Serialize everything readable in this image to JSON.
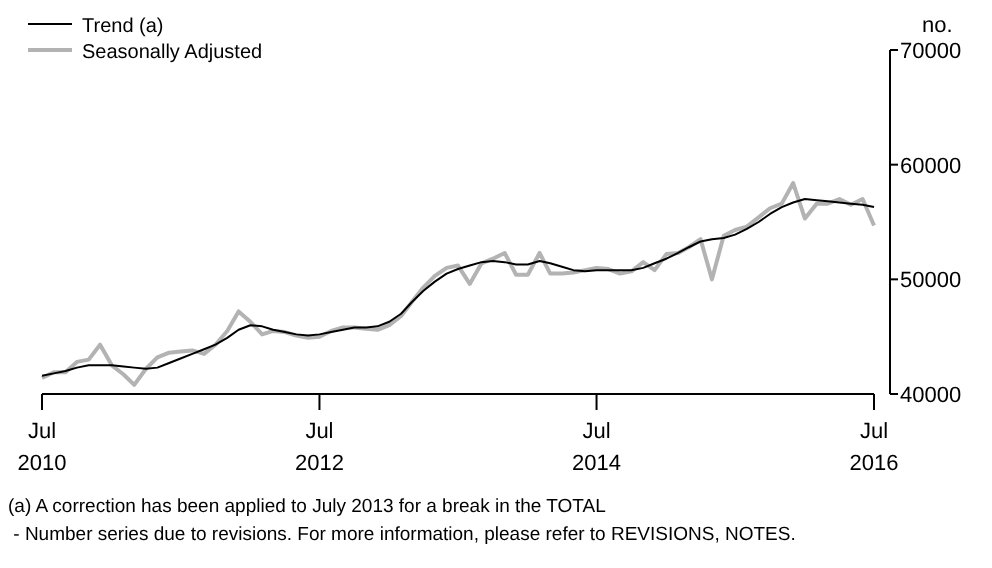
{
  "chart_data": {
    "type": "line",
    "ylabel": "no.",
    "legend": "top left",
    "grid": false,
    "line_style": "solid",
    "x": [
      "2010-07",
      "2010-08",
      "2010-09",
      "2010-10",
      "2010-11",
      "2010-12",
      "2011-01",
      "2011-02",
      "2011-03",
      "2011-04",
      "2011-05",
      "2011-06",
      "2011-07",
      "2011-08",
      "2011-09",
      "2011-10",
      "2011-11",
      "2011-12",
      "2012-01",
      "2012-02",
      "2012-03",
      "2012-04",
      "2012-05",
      "2012-06",
      "2012-07",
      "2012-08",
      "2012-09",
      "2012-10",
      "2012-11",
      "2012-12",
      "2013-01",
      "2013-02",
      "2013-03",
      "2013-04",
      "2013-05",
      "2013-06",
      "2013-07",
      "2013-08",
      "2013-09",
      "2013-10",
      "2013-11",
      "2013-12",
      "2014-01",
      "2014-02",
      "2014-03",
      "2014-04",
      "2014-05",
      "2014-06",
      "2014-07",
      "2014-08",
      "2014-09",
      "2014-10",
      "2014-11",
      "2014-12",
      "2015-01",
      "2015-02",
      "2015-03",
      "2015-04",
      "2015-05",
      "2015-06",
      "2015-07",
      "2015-08",
      "2015-09",
      "2015-10",
      "2015-11",
      "2015-12",
      "2016-01",
      "2016-02",
      "2016-03",
      "2016-04",
      "2016-05",
      "2016-06",
      "2016-07"
    ],
    "series": [
      {
        "name": "Trend (a)",
        "color": "#000000",
        "values": [
          41600,
          41800,
          42000,
          42300,
          42500,
          42500,
          42500,
          42400,
          42300,
          42200,
          42300,
          42700,
          43100,
          43500,
          43900,
          44300,
          44900,
          45600,
          46000,
          45900,
          45600,
          45400,
          45200,
          45100,
          45200,
          45400,
          45600,
          45800,
          45800,
          45900,
          46300,
          47000,
          48000,
          49000,
          49800,
          50500,
          50900,
          51200,
          51500,
          51600,
          51500,
          51300,
          51300,
          51600,
          51400,
          51100,
          50800,
          50700,
          50800,
          50800,
          50800,
          50800,
          51000,
          51400,
          51800,
          52300,
          52800,
          53300,
          53500,
          53600,
          53900,
          54400,
          55000,
          55700,
          56300,
          56700,
          57000,
          56900,
          56800,
          56700,
          56600,
          56500,
          56300
        ]
      },
      {
        "name": "Seasonally Adjusted",
        "color": "#b3b3b3",
        "values": [
          41400,
          41900,
          41900,
          42800,
          43000,
          44300,
          42500,
          41700,
          40800,
          42200,
          43200,
          43600,
          43700,
          43800,
          43500,
          44300,
          45500,
          47200,
          46300,
          45200,
          45500,
          45400,
          45100,
          44900,
          45000,
          45500,
          45800,
          45800,
          45700,
          45600,
          46000,
          46800,
          48000,
          49300,
          50300,
          51000,
          51200,
          49600,
          51400,
          51800,
          52300,
          50400,
          50400,
          52300,
          50500,
          50500,
          50600,
          50800,
          51000,
          50900,
          50500,
          50700,
          51500,
          50800,
          52200,
          52300,
          52800,
          53500,
          50000,
          53800,
          54300,
          54600,
          55400,
          56200,
          56600,
          58400,
          55300,
          56600,
          56600,
          57000,
          56500,
          57000,
          54700
        ]
      }
    ],
    "xlim": [
      "2010-07",
      "2016-07"
    ],
    "xticks": [
      {
        "value": "2010-07",
        "label": "Jul\n2010"
      },
      {
        "value": "2012-07",
        "label": "Jul\n2012"
      },
      {
        "value": "2014-07",
        "label": "Jul\n2014"
      },
      {
        "value": "2016-07",
        "label": "Jul\n2016"
      }
    ],
    "ylim": [
      40000,
      70000
    ],
    "yticks": [
      40000,
      50000,
      60000,
      70000
    ],
    "annotations": [
      "(a) A correction has been applied to July 2013 for a break in the TOTAL",
      " - Number series due to revisions. For more information, please refer to REVISIONS, NOTES."
    ]
  }
}
